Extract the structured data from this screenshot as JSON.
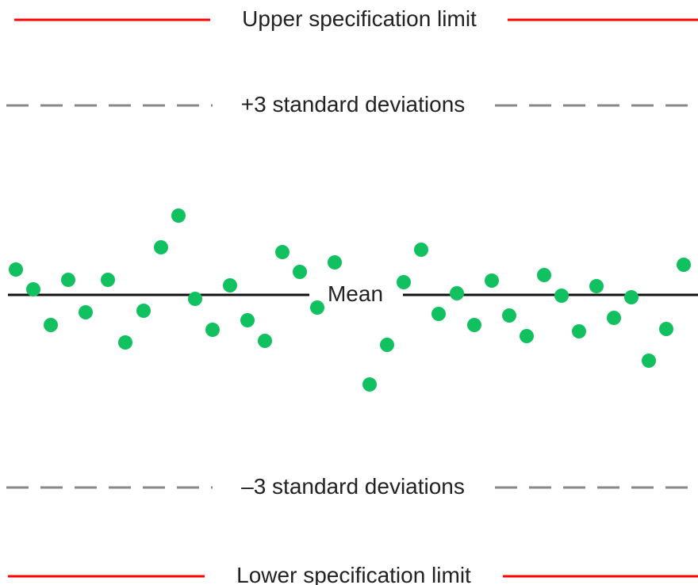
{
  "labels": {
    "usl": "Upper specification limit",
    "plus3": "+3 standard deviations",
    "mean": "Mean",
    "minus3": "–3 standard deviations",
    "lsl": "Lower specification limit"
  },
  "colors": {
    "spec_limit": "#ff0000",
    "sigma_limit": "#888888",
    "mean": "#111111",
    "points": "#11c15f"
  }
}
